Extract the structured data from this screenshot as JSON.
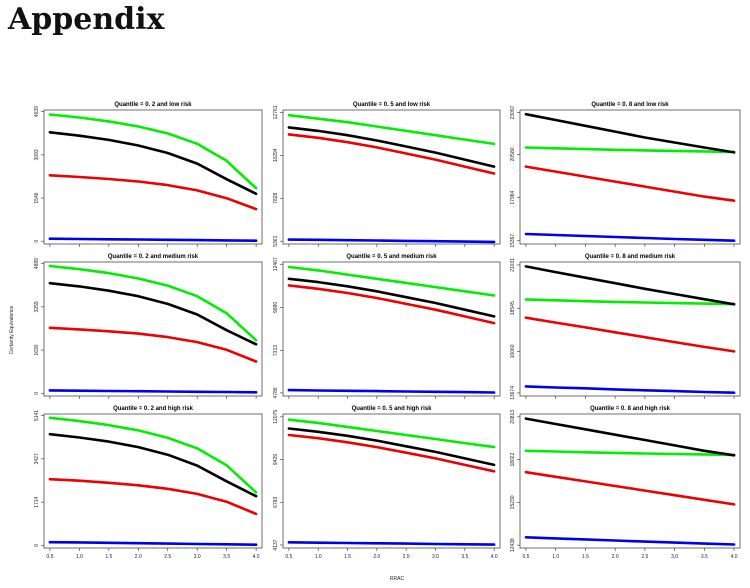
{
  "page": {
    "title": "Appendix"
  },
  "axes": {
    "xlabel": "RRAC",
    "ylabel": "Certainty Equivalence"
  },
  "series_colors": [
    "#00ee00",
    "#000000",
    "#ee0000",
    "#0000ee"
  ],
  "chart_data": [
    {
      "type": "line",
      "title": "Quantile = 0. 2 and low risk",
      "xticks": [
        "0.5",
        "1.0",
        "1.5",
        "2.0",
        "2.5",
        "3.0",
        "3.5",
        "4.0"
      ],
      "yticks": [
        "0",
        "1546",
        "3093",
        "4639"
      ],
      "ylim": [
        -100,
        4700
      ],
      "xlim": [
        0.4,
        4.1
      ],
      "x": [
        0.5,
        1.0,
        1.5,
        2.0,
        2.5,
        3.0,
        3.5,
        4.0
      ],
      "series": [
        {
          "color": "#00ee00",
          "values": [
            4540,
            4430,
            4290,
            4110,
            3860,
            3490,
            2880,
            1900
          ]
        },
        {
          "color": "#000000",
          "values": [
            3900,
            3780,
            3630,
            3430,
            3160,
            2780,
            2220,
            1700
          ]
        },
        {
          "color": "#ee0000",
          "values": [
            2360,
            2300,
            2230,
            2140,
            2010,
            1820,
            1540,
            1150
          ]
        },
        {
          "color": "#0000ee",
          "values": [
            90,
            80,
            70,
            60,
            50,
            40,
            30,
            20
          ]
        }
      ]
    },
    {
      "type": "line",
      "title": "Quantile = 0. 5 and low risk",
      "xticks": [
        "0.5",
        "1.0",
        "1.5",
        "2.0",
        "2.5",
        "3.0",
        "3.5",
        "4.0"
      ],
      "yticks": [
        "5361",
        "7828",
        "10294",
        "12761"
      ],
      "ylim": [
        5200,
        12900
      ],
      "xlim": [
        0.4,
        4.1
      ],
      "x": [
        0.5,
        1.0,
        1.5,
        2.0,
        2.5,
        3.0,
        3.5,
        4.0
      ],
      "series": [
        {
          "color": "#00ee00",
          "values": [
            12600,
            12400,
            12200,
            11950,
            11700,
            11450,
            11200,
            10950
          ]
        },
        {
          "color": "#000000",
          "values": [
            11900,
            11700,
            11450,
            11150,
            10800,
            10450,
            10050,
            9650
          ]
        },
        {
          "color": "#ee0000",
          "values": [
            11500,
            11300,
            11050,
            10750,
            10400,
            10050,
            9650,
            9250
          ]
        },
        {
          "color": "#0000ee",
          "values": [
            5450,
            5440,
            5420,
            5400,
            5380,
            5360,
            5340,
            5320
          ]
        }
      ]
    },
    {
      "type": "line",
      "title": "Quantile = 0. 8 and low risk",
      "xticks": [
        "0.5",
        "1.0",
        "1.5",
        "2.0",
        "2.5",
        "3.0",
        "3.5",
        "4.0"
      ],
      "yticks": [
        "15397",
        "17984",
        "20580",
        "23097"
      ],
      "ylim": [
        15200,
        23250
      ],
      "xlim": [
        0.4,
        4.1
      ],
      "x": [
        0.5,
        1.0,
        1.5,
        2.0,
        2.5,
        3.0,
        3.5,
        4.0
      ],
      "series": [
        {
          "color": "#00ee00",
          "values": [
            21000,
            20950,
            20900,
            20860,
            20820,
            20790,
            20760,
            20730
          ]
        },
        {
          "color": "#000000",
          "values": [
            23000,
            22650,
            22300,
            21950,
            21600,
            21300,
            21000,
            20700
          ]
        },
        {
          "color": "#ee0000",
          "values": [
            19850,
            19550,
            19250,
            18950,
            18650,
            18350,
            18050,
            17800
          ]
        },
        {
          "color": "#0000ee",
          "values": [
            15800,
            15740,
            15680,
            15620,
            15560,
            15500,
            15450,
            15400
          ]
        }
      ]
    },
    {
      "type": "line",
      "title": "Quantile = 0. 2 and medium risk",
      "xticks": [
        "0.5",
        "1.0",
        "1.5",
        "2.0",
        "2.5",
        "3.0",
        "3.5",
        "4.0"
      ],
      "yticks": [
        "0",
        "1630",
        "3259",
        "4889"
      ],
      "ylim": [
        -100,
        4950
      ],
      "xlim": [
        0.4,
        4.1
      ],
      "x": [
        0.5,
        1.0,
        1.5,
        2.0,
        2.5,
        3.0,
        3.5,
        4.0
      ],
      "series": [
        {
          "color": "#00ee00",
          "values": [
            4800,
            4680,
            4530,
            4330,
            4060,
            3660,
            3020,
            2000
          ]
        },
        {
          "color": "#000000",
          "values": [
            4150,
            4030,
            3870,
            3660,
            3370,
            2970,
            2380,
            1850
          ]
        },
        {
          "color": "#ee0000",
          "values": [
            2470,
            2410,
            2340,
            2250,
            2120,
            1930,
            1640,
            1200
          ]
        },
        {
          "color": "#0000ee",
          "values": [
            110,
            100,
            90,
            80,
            70,
            60,
            50,
            40
          ]
        }
      ]
    },
    {
      "type": "line",
      "title": "Quantile = 0. 5 and medium risk",
      "xticks": [
        "0.5",
        "1.0",
        "1.5",
        "2.0",
        "2.5",
        "3.0",
        "3.5",
        "4.0"
      ],
      "yticks": [
        "4786",
        "7313",
        "9890",
        "12467"
      ],
      "ylim": [
        4600,
        12600
      ],
      "xlim": [
        0.4,
        4.1
      ],
      "x": [
        0.5,
        1.0,
        1.5,
        2.0,
        2.5,
        3.0,
        3.5,
        4.0
      ],
      "series": [
        {
          "color": "#00ee00",
          "values": [
            12300,
            12100,
            11850,
            11600,
            11350,
            11100,
            10850,
            10600
          ]
        },
        {
          "color": "#000000",
          "values": [
            11600,
            11400,
            11150,
            10850,
            10500,
            10150,
            9750,
            9350
          ]
        },
        {
          "color": "#ee0000",
          "values": [
            11200,
            11000,
            10750,
            10450,
            10100,
            9750,
            9350,
            8950
          ]
        },
        {
          "color": "#0000ee",
          "values": [
            4950,
            4930,
            4910,
            4890,
            4870,
            4850,
            4830,
            4810
          ]
        }
      ]
    },
    {
      "type": "line",
      "title": "Quantile = 0. 8 and medium risk",
      "xticks": [
        "0.5",
        "1.0",
        "1.5",
        "2.0",
        "2.5",
        "3.0",
        "3.5",
        "4.0"
      ],
      "yticks": [
        "13674",
        "16060",
        "18545",
        "21031"
      ],
      "ylim": [
        13500,
        21200
      ],
      "xlim": [
        0.4,
        4.1
      ],
      "x": [
        0.5,
        1.0,
        1.5,
        2.0,
        2.5,
        3.0,
        3.5,
        4.0
      ],
      "series": [
        {
          "color": "#00ee00",
          "values": [
            19050,
            19000,
            18950,
            18910,
            18870,
            18840,
            18810,
            18780
          ]
        },
        {
          "color": "#000000",
          "values": [
            20950,
            20620,
            20300,
            19980,
            19660,
            19360,
            19060,
            18770
          ]
        },
        {
          "color": "#ee0000",
          "values": [
            18000,
            17720,
            17440,
            17160,
            16880,
            16600,
            16320,
            16060
          ]
        },
        {
          "color": "#0000ee",
          "values": [
            14050,
            13990,
            13940,
            13880,
            13830,
            13780,
            13730,
            13690
          ]
        }
      ]
    },
    {
      "type": "line",
      "title": "Quantile = 0. 2 and high risk",
      "xticks": [
        "0.5",
        "1.0",
        "1.5",
        "2.0",
        "2.5",
        "3.0",
        "3.5",
        "4.0"
      ],
      "yticks": [
        "0",
        "1714",
        "3427",
        "5141"
      ],
      "ylim": [
        -100,
        5200
      ],
      "xlim": [
        0.4,
        4.1
      ],
      "x": [
        0.5,
        1.0,
        1.5,
        2.0,
        2.5,
        3.0,
        3.5,
        4.0
      ],
      "series": [
        {
          "color": "#00ee00",
          "values": [
            5050,
            4920,
            4760,
            4550,
            4260,
            3840,
            3170,
            2100
          ]
        },
        {
          "color": "#000000",
          "values": [
            4400,
            4270,
            4110,
            3890,
            3590,
            3160,
            2540,
            1950
          ]
        },
        {
          "color": "#ee0000",
          "values": [
            2620,
            2560,
            2480,
            2380,
            2240,
            2040,
            1730,
            1250
          ]
        },
        {
          "color": "#0000ee",
          "values": [
            130,
            120,
            105,
            90,
            75,
            60,
            45,
            30
          ]
        }
      ]
    },
    {
      "type": "line",
      "title": "Quantile = 0. 5 and high risk",
      "xticks": [
        "0.5",
        "1.0",
        "1.5",
        "2.0",
        "2.5",
        "3.0",
        "3.5",
        "4.0"
      ],
      "yticks": [
        "4137",
        "6783",
        "9429",
        "12075"
      ],
      "ylim": [
        3950,
        12250
      ],
      "xlim": [
        0.4,
        4.1
      ],
      "x": [
        0.5,
        1.0,
        1.5,
        2.0,
        2.5,
        3.0,
        3.5,
        4.0
      ],
      "series": [
        {
          "color": "#00ee00",
          "values": [
            11900,
            11700,
            11450,
            11200,
            10950,
            10700,
            10450,
            10200
          ]
        },
        {
          "color": "#000000",
          "values": [
            11350,
            11150,
            10900,
            10600,
            10250,
            9900,
            9500,
            9100
          ]
        },
        {
          "color": "#ee0000",
          "values": [
            10950,
            10750,
            10500,
            10200,
            9850,
            9500,
            9100,
            8700
          ]
        },
        {
          "color": "#0000ee",
          "values": [
            4300,
            4280,
            4260,
            4240,
            4220,
            4200,
            4180,
            4160
          ]
        }
      ]
    },
    {
      "type": "line",
      "title": "Quantile = 0. 8 and high risk",
      "xticks": [
        "0.5",
        "1.0",
        "1.5",
        "2.0",
        "2.5",
        "3.0",
        "3.5",
        "4.0"
      ],
      "yticks": [
        "12438",
        "15230",
        "18022",
        "20813"
      ],
      "ylim": [
        12250,
        21000
      ],
      "xlim": [
        0.4,
        4.1
      ],
      "x": [
        0.5,
        1.0,
        1.5,
        2.0,
        2.5,
        3.0,
        3.5,
        4.0
      ],
      "series": [
        {
          "color": "#00ee00",
          "values": [
            18600,
            18550,
            18500,
            18460,
            18420,
            18390,
            18360,
            18330
          ]
        },
        {
          "color": "#000000",
          "values": [
            20700,
            20350,
            20000,
            19650,
            19300,
            18950,
            18600,
            18300
          ]
        },
        {
          "color": "#ee0000",
          "values": [
            17200,
            16900,
            16600,
            16300,
            16000,
            15700,
            15400,
            15100
          ]
        },
        {
          "color": "#0000ee",
          "values": [
            12950,
            12880,
            12810,
            12740,
            12670,
            12600,
            12540,
            12480
          ]
        }
      ]
    }
  ]
}
